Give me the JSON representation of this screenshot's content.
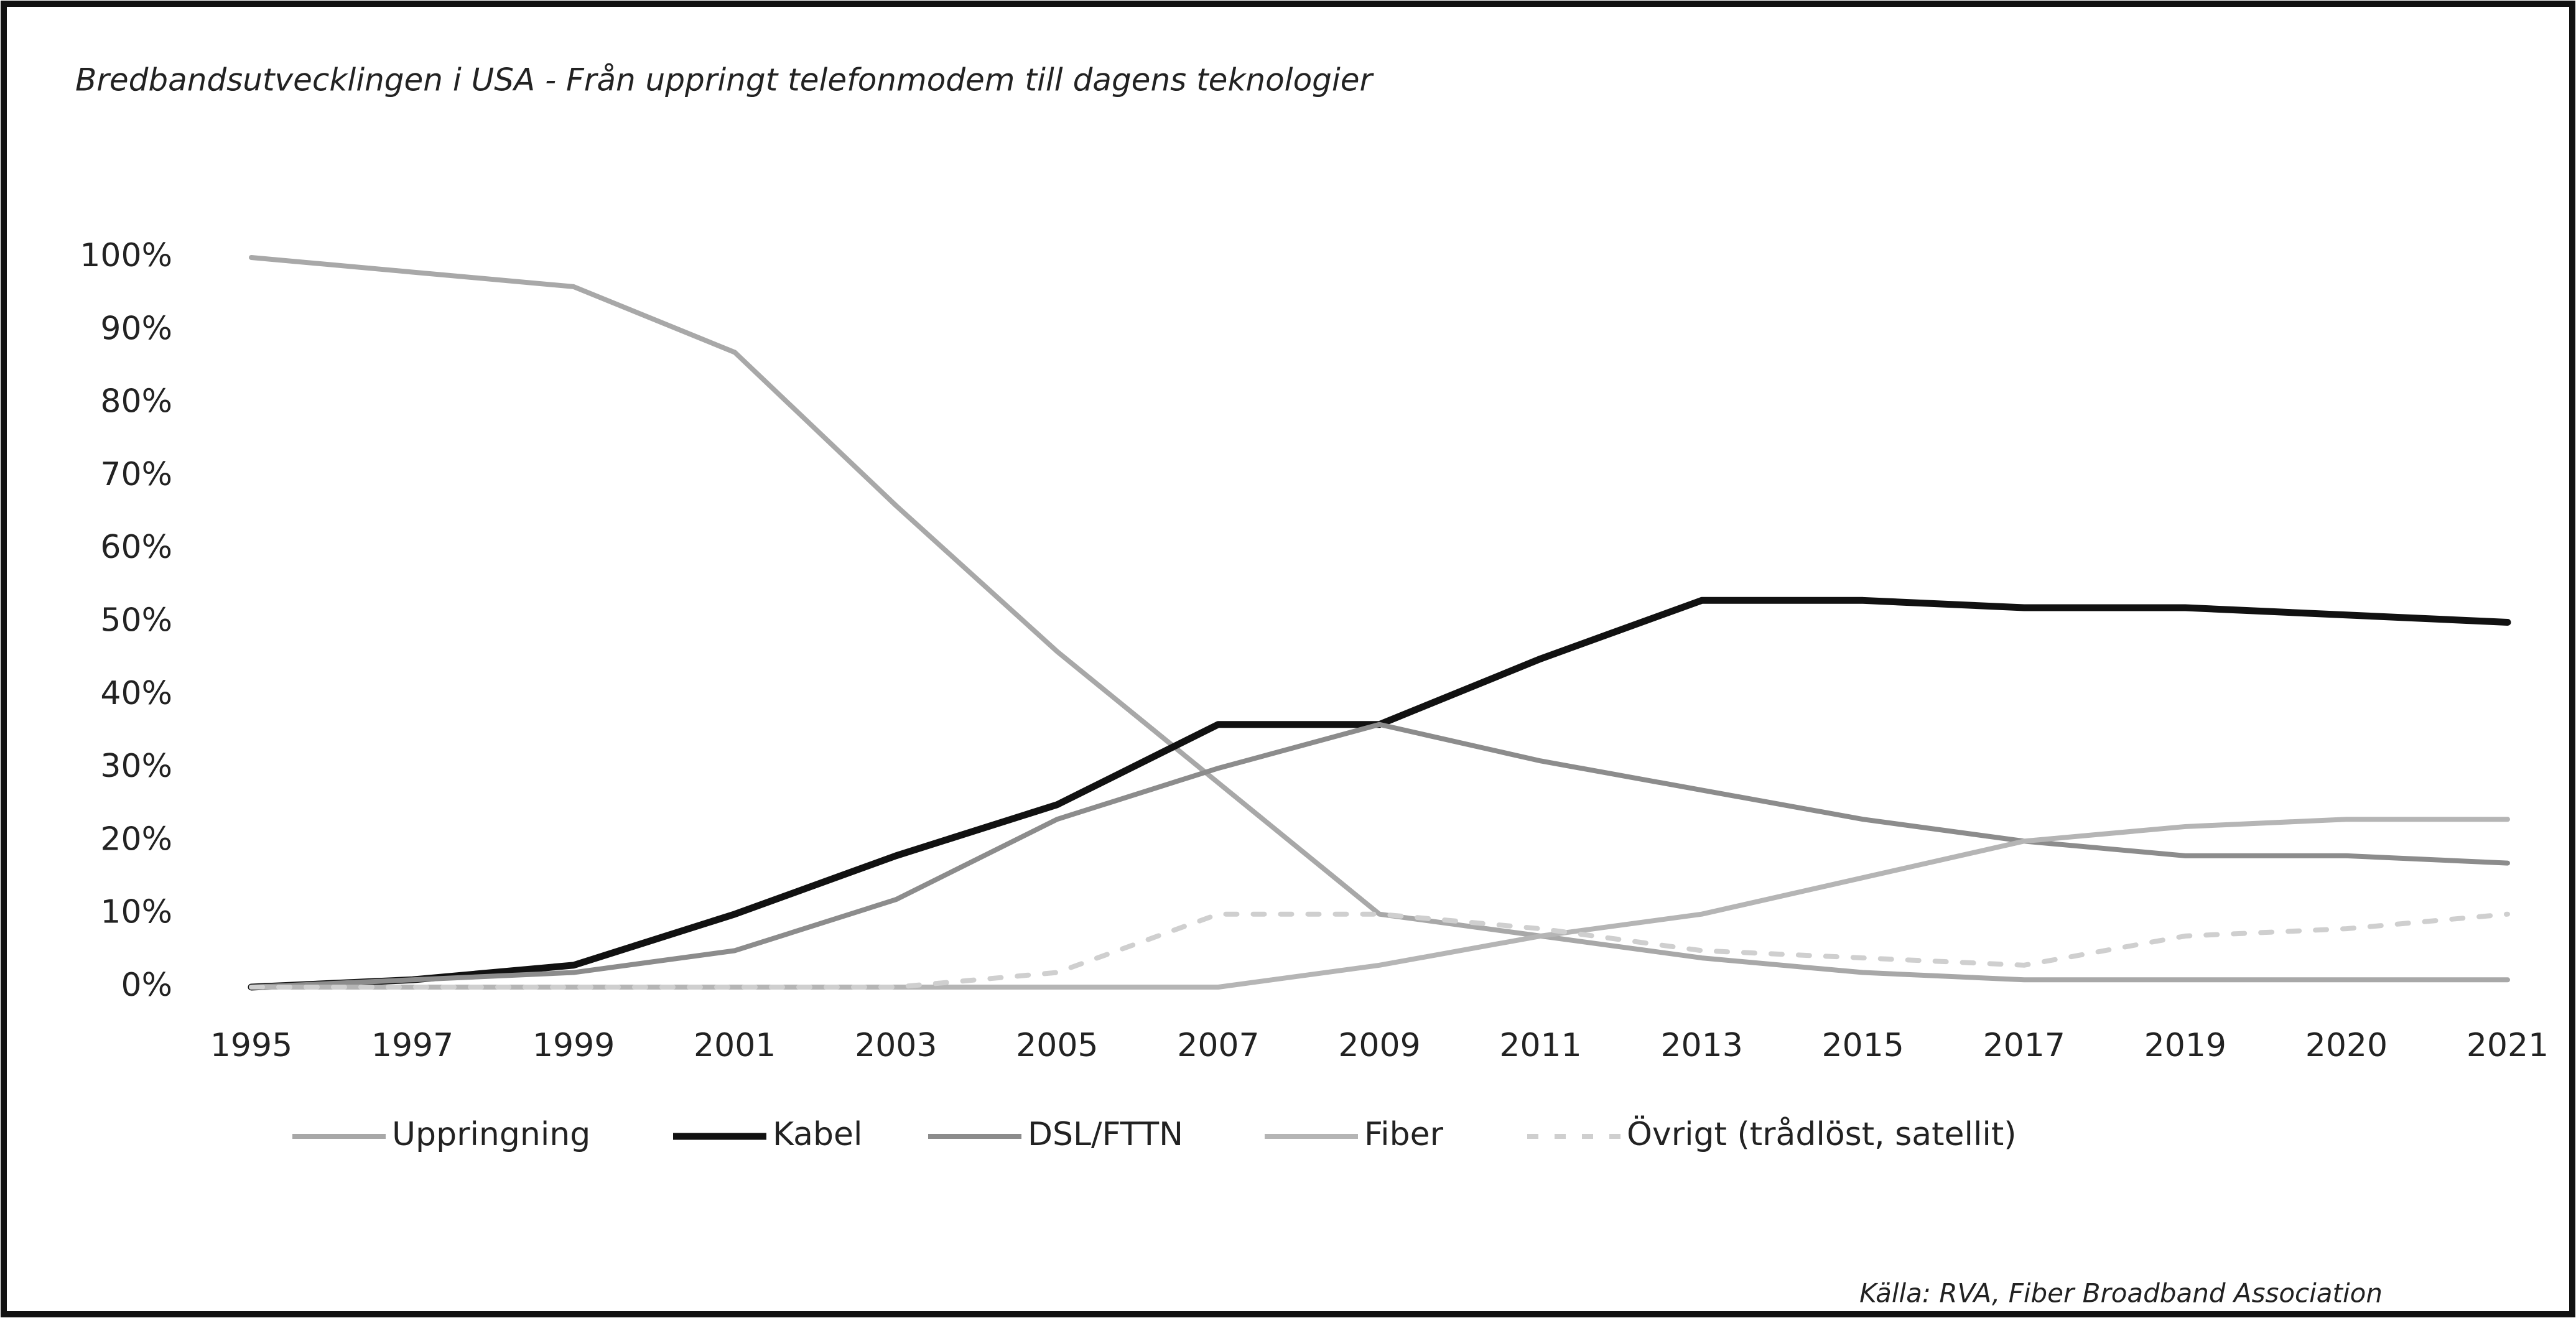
{
  "chart_data": {
    "type": "line",
    "title": "Bredbandsutvecklingen i USA - Från uppringt telefonmodem till dagens teknologier",
    "source": "Källa: RVA, Fiber Broadband Association",
    "categories": [
      "1995",
      "1997",
      "1999",
      "2001",
      "2003",
      "2005",
      "2007",
      "2009",
      "2011",
      "2013",
      "2015",
      "2017",
      "2019",
      "2020",
      "2021"
    ],
    "series": [
      {
        "name": "Uppringning",
        "color": "#a8a8a8",
        "values": [
          100,
          98,
          96,
          87,
          66,
          46,
          28,
          10,
          7,
          4,
          2,
          1,
          1,
          1,
          1
        ]
      },
      {
        "name": "Kabel",
        "color": "#111111",
        "values": [
          0,
          1,
          3,
          10,
          18,
          25,
          36,
          36,
          45,
          53,
          53,
          52,
          52,
          51,
          50
        ]
      },
      {
        "name": "DSL/FTTN",
        "color": "#8c8c8c",
        "values": [
          0,
          1,
          2,
          5,
          12,
          23,
          30,
          36,
          31,
          27,
          23,
          20,
          18,
          18,
          17
        ]
      },
      {
        "name": "Fiber",
        "color": "#b5b5b5",
        "values": [
          0,
          0,
          0,
          0,
          0,
          0,
          0,
          3,
          7,
          10,
          15,
          20,
          22,
          23,
          23
        ]
      },
      {
        "name": "Övrigt (trådlöst, satellit)",
        "color": "#cfcfcf",
        "dashed": true,
        "values": [
          0,
          0,
          0,
          0,
          0,
          2,
          10,
          10,
          8,
          5,
          4,
          3,
          7,
          8,
          10
        ]
      }
    ],
    "ylim": [
      0,
      100
    ],
    "yticks": [
      {
        "value": 0,
        "label": "0%"
      },
      {
        "value": 10,
        "label": "10%"
      },
      {
        "value": 20,
        "label": "20%"
      },
      {
        "value": 30,
        "label": "30%"
      },
      {
        "value": 40,
        "label": "40%"
      },
      {
        "value": 50,
        "label": "50%"
      },
      {
        "value": 60,
        "label": "60%"
      },
      {
        "value": 70,
        "label": "70%"
      },
      {
        "value": 80,
        "label": "80%"
      },
      {
        "value": 90,
        "label": "90%"
      },
      {
        "value": 100,
        "label": "100%"
      }
    ],
    "grid": false,
    "legend": "bottom"
  }
}
